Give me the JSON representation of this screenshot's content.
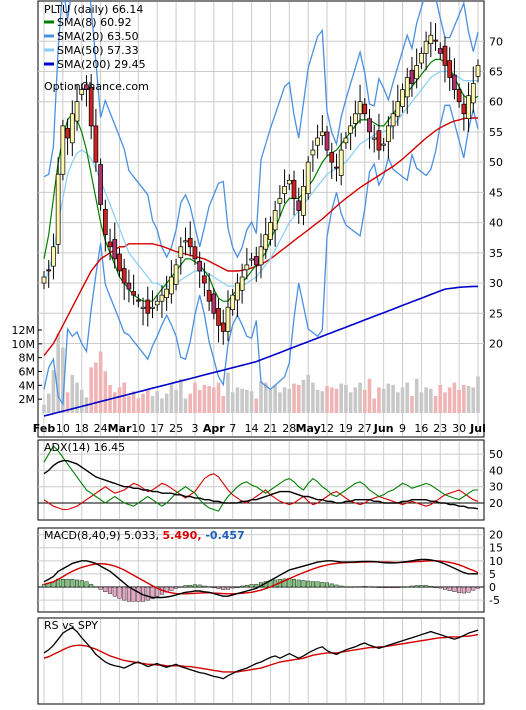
{
  "chart_data": [
    {
      "type": "candlestick",
      "panel": "price",
      "title": "PLTU (daily) 66.14",
      "watermark": "OptionChance.com",
      "x_labels": [
        "Feb",
        "10",
        "18",
        "24",
        "Mar",
        "10",
        "17",
        "25",
        "3",
        "Apr",
        "7",
        "14",
        "21",
        "28",
        "May",
        "12",
        "19",
        "27",
        "Jun",
        "9",
        "16",
        "23",
        "30",
        "Jul"
      ],
      "bold_x_labels": [
        "Feb",
        "Mar",
        "Apr",
        "May",
        "Jun",
        "Jul"
      ],
      "y_ticks": [
        20,
        25,
        30,
        35,
        40,
        45,
        50,
        55,
        60,
        65,
        70
      ],
      "ylim": [
        9,
        76
      ],
      "volume_ticks": [
        "2M",
        "4M",
        "6M",
        "8M",
        "10M",
        "12M"
      ],
      "volume_ylim": [
        0,
        12
      ],
      "legend": [
        {
          "label": "SMA(8) 60.92",
          "color": "#008000"
        },
        {
          "label": "SMA(20) 63.50",
          "color": "#4a90e2"
        },
        {
          "label": "SMA(50) 57.33",
          "color": "#87cefa"
        },
        {
          "label": "SMA(200) 29.45",
          "color": "#0000cc"
        }
      ],
      "close": [
        31,
        32,
        36,
        48,
        56,
        54,
        58,
        60,
        62,
        62,
        56,
        50,
        43,
        38,
        36,
        34,
        32,
        30,
        29,
        28,
        27,
        26,
        25,
        26,
        27,
        28,
        29,
        31,
        33,
        36,
        37,
        36,
        34,
        32,
        30,
        27,
        25,
        23,
        22,
        26,
        28,
        30,
        31,
        33,
        34,
        33,
        36,
        38,
        40,
        42,
        44,
        46,
        47,
        44,
        42,
        46,
        50,
        52,
        54,
        55,
        52,
        50,
        49,
        52,
        54,
        56,
        58,
        60,
        58,
        55,
        54,
        52,
        53,
        56,
        58,
        60,
        62,
        64,
        63,
        66,
        68,
        70,
        71,
        70,
        68,
        66,
        64,
        62,
        60,
        58,
        61,
        63,
        66
      ],
      "sma8": [
        34,
        38,
        44,
        50,
        54,
        57,
        58,
        57,
        55,
        52,
        48,
        44,
        40,
        37,
        35,
        33,
        31,
        30,
        29,
        28,
        27.5,
        27,
        27,
        27,
        28,
        29,
        30,
        31,
        32,
        33,
        34,
        34,
        33.5,
        33,
        32,
        31,
        29,
        27.5,
        27,
        27,
        28,
        29,
        30,
        31,
        32,
        33,
        34,
        35,
        37,
        39,
        41,
        43,
        44,
        44,
        44,
        45,
        46,
        47,
        48.5,
        50,
        51,
        51.5,
        52,
        53,
        54,
        55,
        56,
        57,
        57,
        57,
        56.5,
        56,
        56,
        57,
        58,
        59,
        60,
        61.5,
        62.5,
        63.5,
        64.5,
        65.5,
        66.5,
        67,
        67,
        66.5,
        65.5,
        64,
        62.5,
        61,
        60.5,
        60.5,
        60.9
      ],
      "sma20": [
        30,
        32,
        35,
        40,
        44,
        48,
        50,
        51.5,
        52,
        51.5,
        50.5,
        49,
        47,
        45,
        43,
        41,
        39,
        37,
        35,
        34,
        33,
        32,
        31,
        30,
        30,
        29.5,
        29.5,
        29.5,
        30,
        30.5,
        31,
        31.5,
        32,
        32,
        32,
        31.5,
        31,
        30.5,
        30,
        29.5,
        29.5,
        29.5,
        29.5,
        30,
        30.5,
        31,
        32,
        33,
        34,
        35.5,
        37,
        38.5,
        40,
        41,
        42,
        43,
        44,
        45,
        46,
        47,
        48,
        48.5,
        49,
        49.5,
        50,
        51,
        52,
        53,
        53.5,
        54,
        54.5,
        55,
        55,
        55.5,
        56,
        57,
        58,
        59,
        60,
        61,
        62,
        63,
        64,
        64.5,
        65,
        65,
        65,
        64.5,
        64,
        63.5,
        63.5,
        63.5,
        63.5
      ],
      "sma50": [
        18,
        19,
        20,
        21.5,
        23,
        24.5,
        26,
        27.5,
        29,
        30.5,
        32,
        33,
        34,
        34.5,
        35,
        35.5,
        36,
        36,
        36.5,
        36.5,
        36.5,
        36.5,
        36.5,
        36.5,
        36.3,
        36.1,
        35.8,
        35.5,
        35.2,
        35,
        34.8,
        34.6,
        34.4,
        34.2,
        34,
        33.6,
        33.2,
        32.8,
        32.4,
        32,
        32,
        32,
        32.1,
        32.3,
        32.5,
        32.8,
        33.1,
        33.5,
        34,
        34.6,
        35.2,
        35.8,
        36.4,
        37,
        37.6,
        38.2,
        38.8,
        39.4,
        40,
        40.6,
        41.3,
        42,
        42.7,
        43.4,
        44,
        44.6,
        45.2,
        45.8,
        46.3,
        46.8,
        47.3,
        47.8,
        48.3,
        48.8,
        49.3,
        49.9,
        50.5,
        51.2,
        51.9,
        52.6,
        53.3,
        54,
        54.6,
        55.2,
        55.7,
        56.1,
        56.5,
        56.8,
        57,
        57.2,
        57.3,
        57.3,
        57.3
      ],
      "sma200": [
        8,
        8.2,
        8.4,
        8.6,
        8.8,
        9,
        9.2,
        9.4,
        9.6,
        9.8,
        10,
        10.2,
        10.4,
        10.6,
        10.8,
        11,
        11.2,
        11.4,
        11.6,
        11.8,
        12,
        12.2,
        12.4,
        12.6,
        12.8,
        13,
        13.2,
        13.4,
        13.6,
        13.8,
        14,
        14.2,
        14.4,
        14.6,
        14.8,
        15,
        15.2,
        15.4,
        15.6,
        15.8,
        16,
        16.2,
        16.4,
        16.6,
        16.8,
        17,
        17.3,
        17.6,
        17.9,
        18.2,
        18.5,
        18.8,
        19.1,
        19.4,
        19.7,
        20,
        20.3,
        20.6,
        20.9,
        21.2,
        21.5,
        21.8,
        22.1,
        22.4,
        22.7,
        23,
        23.3,
        23.6,
        23.9,
        24.2,
        24.5,
        24.8,
        25.1,
        25.4,
        25.7,
        26,
        26.3,
        26.6,
        26.9,
        27.2,
        27.5,
        27.8,
        28.1,
        28.4,
        28.7,
        29,
        29.1,
        29.2,
        29.3,
        29.35,
        29.4,
        29.45,
        29.45
      ]
    },
    {
      "type": "line",
      "panel": "adx",
      "title": "ADX(14) 16.45",
      "y_ticks": [
        20,
        30,
        40,
        50
      ],
      "ylim": [
        12,
        55
      ],
      "adx": [
        38,
        40,
        43,
        45,
        46,
        46,
        45,
        44,
        42,
        40,
        38,
        36,
        35,
        34,
        33,
        32,
        31,
        30,
        30,
        29,
        29,
        28,
        28,
        27,
        27,
        26,
        26,
        26,
        25,
        25,
        24,
        24,
        23,
        23,
        22,
        22,
        21,
        21,
        20,
        20,
        20,
        20,
        21,
        21,
        22,
        22,
        23,
        24,
        25,
        26,
        27,
        27,
        27,
        26,
        25,
        24,
        24,
        23,
        22,
        22,
        21,
        21,
        20,
        20,
        21,
        21,
        22,
        22,
        22,
        22,
        21,
        21,
        20,
        20,
        20,
        20,
        21,
        21,
        22,
        22,
        22,
        22,
        21,
        21,
        20,
        20,
        19,
        19,
        18,
        18,
        17,
        17,
        16.45
      ],
      "plus_di": [
        45,
        50,
        55,
        52,
        48,
        44,
        40,
        36,
        32,
        28,
        26,
        24,
        22,
        20,
        22,
        24,
        22,
        20,
        19,
        18,
        20,
        22,
        24,
        22,
        20,
        18,
        20,
        23,
        26,
        28,
        30,
        28,
        26,
        22,
        19,
        17,
        16,
        15,
        20,
        24,
        27,
        30,
        32,
        33,
        31,
        30,
        28,
        26,
        28,
        30,
        32,
        34,
        35,
        33,
        30,
        28,
        32,
        35,
        33,
        30,
        28,
        25,
        24,
        26,
        28,
        30,
        32,
        33,
        31,
        28,
        26,
        24,
        25,
        27,
        28,
        30,
        32,
        31,
        29,
        30,
        31,
        32,
        31,
        29,
        27,
        25,
        24,
        23,
        22,
        24,
        26,
        28,
        28
      ],
      "minus_di": [
        22,
        20,
        18,
        17,
        16,
        16,
        17,
        18,
        20,
        22,
        24,
        26,
        28,
        30,
        28,
        26,
        27,
        28,
        30,
        32,
        31,
        29,
        27,
        28,
        30,
        32,
        31,
        29,
        27,
        25,
        23,
        25,
        27,
        31,
        35,
        37,
        38,
        36,
        32,
        28,
        25,
        23,
        21,
        20,
        22,
        24,
        26,
        28,
        25,
        23,
        21,
        20,
        19,
        20,
        22,
        24,
        21,
        19,
        20,
        22,
        24,
        26,
        27,
        25,
        23,
        21,
        20,
        19,
        20,
        22,
        23,
        24,
        23,
        22,
        21,
        20,
        19,
        20,
        21,
        20,
        19,
        18,
        19,
        21,
        23,
        25,
        26,
        27,
        28,
        26,
        24,
        22,
        21
      ]
    },
    {
      "type": "line",
      "panel": "macd",
      "title": "MACD(8,40,9) 5.033,",
      "signal_label": "5.490,",
      "hist_label": "-0.457",
      "y_ticks": [
        -5,
        0,
        5,
        10,
        15,
        20
      ],
      "ylim": [
        -8,
        21
      ],
      "macd": [
        2,
        3,
        4,
        6,
        7,
        8,
        9,
        9.5,
        10,
        10,
        9.5,
        9,
        8,
        7,
        6,
        4.5,
        3,
        1.5,
        0,
        -1,
        -2,
        -3,
        -3.5,
        -4,
        -4,
        -4,
        -3.8,
        -3.5,
        -3,
        -2.5,
        -2,
        -1.8,
        -1.5,
        -1.5,
        -1.8,
        -2,
        -2.5,
        -3,
        -3.5,
        -3.5,
        -3,
        -2.5,
        -2,
        -1.5,
        -1,
        -0.5,
        0.5,
        1.5,
        2.5,
        3.5,
        4.5,
        5.5,
        6.5,
        7,
        7.5,
        8,
        8.5,
        9,
        9.5,
        9.8,
        10,
        10,
        9.8,
        9.6,
        9.5,
        9.5,
        9.6,
        9.7,
        9.8,
        9.8,
        9.7,
        9.5,
        9.3,
        9.2,
        9.2,
        9.3,
        9.5,
        9.7,
        10,
        10.3,
        10.5,
        10.5,
        10.3,
        10,
        9.5,
        8.8,
        8,
        7.2,
        6.3,
        5.5,
        5,
        5.1,
        5.033
      ],
      "signal": [
        1,
        1.5,
        2,
        3,
        4,
        5,
        6,
        6.8,
        7.5,
        8,
        8.5,
        8.8,
        8.9,
        8.8,
        8.5,
        8,
        7.3,
        6.5,
        5.5,
        4.5,
        3.5,
        2.5,
        1.5,
        0.5,
        -0.5,
        -1.2,
        -1.8,
        -2.2,
        -2.5,
        -2.6,
        -2.6,
        -2.5,
        -2.4,
        -2.3,
        -2.2,
        -2.2,
        -2.3,
        -2.4,
        -2.5,
        -2.6,
        -2.6,
        -2.5,
        -2.4,
        -2.2,
        -2,
        -1.6,
        -1.2,
        -0.6,
        0,
        0.8,
        1.6,
        2.4,
        3.2,
        4,
        4.8,
        5.5,
        6.2,
        6.9,
        7.5,
        8,
        8.4,
        8.8,
        9,
        9.2,
        9.3,
        9.4,
        9.4,
        9.5,
        9.5,
        9.6,
        9.6,
        9.6,
        9.5,
        9.5,
        9.4,
        9.4,
        9.4,
        9.5,
        9.6,
        9.7,
        9.8,
        9.9,
        10,
        10,
        9.9,
        9.7,
        9.4,
        9,
        8.5,
        7.8,
        7,
        6.3,
        5.49
      ]
    },
    {
      "type": "line",
      "panel": "rs",
      "title": "RS vs SPY",
      "ylim": [
        0,
        100
      ],
      "rs": [
        62,
        66,
        72,
        80,
        88,
        92,
        95,
        90,
        82,
        75,
        68,
        60,
        55,
        50,
        47,
        45,
        44,
        42,
        45,
        48,
        50,
        47,
        44,
        46,
        48,
        45,
        43,
        45,
        47,
        44,
        42,
        40,
        38,
        36,
        35,
        33,
        31,
        30,
        28,
        32,
        35,
        38,
        40,
        42,
        45,
        48,
        50,
        53,
        56,
        58,
        55,
        58,
        61,
        58,
        55,
        58,
        62,
        65,
        68,
        70,
        65,
        62,
        60,
        63,
        66,
        68,
        70,
        73,
        75,
        72,
        70,
        68,
        70,
        72,
        74,
        76,
        78,
        80,
        82,
        84,
        86,
        88,
        90,
        88,
        86,
        84,
        82,
        80,
        82,
        85,
        88,
        90,
        92
      ],
      "rs_ma": [
        55,
        57,
        60,
        63,
        66,
        69,
        71,
        72,
        72,
        71,
        69,
        67,
        64,
        61,
        58,
        56,
        54,
        52,
        51,
        50,
        49,
        48,
        47,
        47,
        46,
        46,
        45,
        45,
        45,
        45,
        44,
        44,
        43,
        42,
        41,
        40,
        39,
        38,
        37,
        37,
        37,
        37,
        38,
        39,
        40,
        41,
        42,
        44,
        46,
        48,
        50,
        51,
        52,
        53,
        54,
        55,
        57,
        59,
        60,
        61,
        62,
        62,
        62,
        63,
        64,
        65,
        66,
        67,
        68,
        69,
        69,
        70,
        70,
        71,
        72,
        73,
        74,
        75,
        76,
        77,
        78,
        79,
        80,
        81,
        82,
        82,
        83,
        83,
        83,
        84,
        84,
        85,
        86
      ]
    }
  ]
}
